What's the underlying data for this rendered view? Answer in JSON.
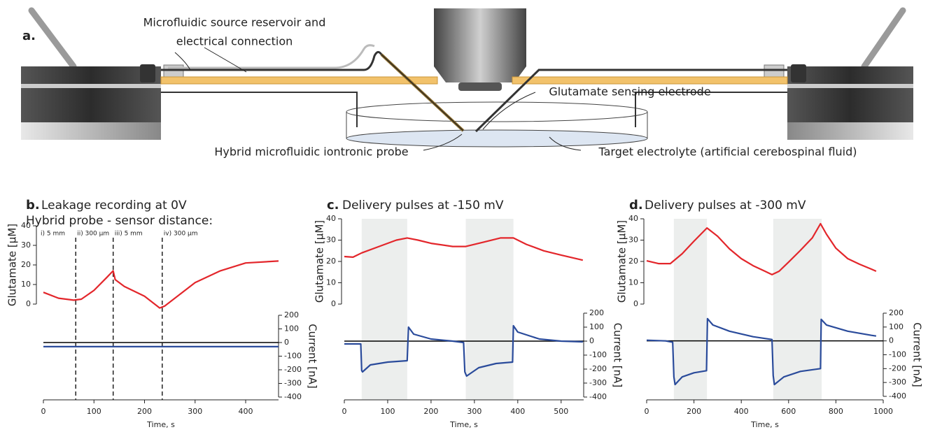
{
  "figure_a": {
    "panel_label": "a.",
    "labels": [
      [
        "Microfluidic source reservoir and",
        "electrical connection"
      ],
      [
        "Glutamate sensing electrode"
      ],
      [
        "Hybrid microfluidic iontronic probe"
      ],
      [
        "Target electrolyte (artificial cerebospinal fluid)"
      ]
    ]
  },
  "chart_data": [
    {
      "type": "line",
      "panel_label": "b.",
      "title": "Leakage recording at 0V",
      "subtitle": "Hybrid probe - sensor distance:",
      "xlabel": "Time, s",
      "ylabel": "Glutamate [µM]",
      "y2label": "Current [nA]",
      "xlim": [
        0,
        465
      ],
      "xticks": [
        0,
        100,
        200,
        300,
        400
      ],
      "ylim": [
        0,
        40
      ],
      "yticks": [
        0,
        10,
        20,
        30,
        40
      ],
      "y2lim": [
        -400,
        200
      ],
      "y2ticks": [
        -400,
        -300,
        -200,
        -100,
        0,
        100,
        200
      ],
      "vlines": [
        64,
        138,
        235
      ],
      "annotations": [
        {
          "text": "i) 5 mm",
          "x": 0
        },
        {
          "text": "ii) 300 µm",
          "x": 64
        },
        {
          "text": "iii) 5 mm",
          "x": 138
        },
        {
          "text": "iv) 300 µm",
          "x": 235
        }
      ],
      "series": [
        {
          "color": "#e3262b",
          "axis": "y",
          "x": [
            0,
            30,
            60,
            75,
            100,
            125,
            138,
            142,
            160,
            200,
            230,
            240,
            270,
            300,
            350,
            400,
            465
          ],
          "values": [
            6,
            3,
            2,
            2.5,
            7,
            13.5,
            17,
            12.5,
            9,
            4,
            -2,
            -1,
            5,
            11,
            17,
            21,
            22
          ]
        },
        {
          "color": "#2a4b9b",
          "axis": "y2",
          "x": [
            0,
            465
          ],
          "values": [
            -30,
            -30
          ]
        }
      ]
    },
    {
      "type": "line",
      "panel_label": "c.",
      "title": "Delivery pulses at -150 mV",
      "xlabel": "Time, s",
      "ylabel": "Glutamate [µM]",
      "y2label": "Current [nA]",
      "xlim": [
        0,
        552
      ],
      "xticks": [
        0,
        100,
        200,
        300,
        400,
        500
      ],
      "ylim": [
        0,
        40
      ],
      "yticks": [
        0,
        10,
        20,
        30,
        40
      ],
      "y2lim": [
        -400,
        200
      ],
      "y2ticks": [
        -400,
        -300,
        -200,
        -100,
        0,
        100,
        200
      ],
      "shaded": [
        [
          40,
          145
        ],
        [
          280,
          390
        ]
      ],
      "series": [
        {
          "color": "#e3262b",
          "axis": "y",
          "x": [
            0,
            20,
            40,
            80,
            120,
            145,
            170,
            200,
            250,
            280,
            320,
            360,
            390,
            420,
            460,
            500,
            550
          ],
          "values": [
            22.3,
            22,
            24,
            27,
            30,
            31,
            30,
            28.5,
            27,
            27,
            29,
            31,
            31,
            28,
            25,
            23,
            20.6
          ]
        },
        {
          "color": "#2a4b9b",
          "axis": "y2",
          "x": [
            0,
            38,
            40,
            42,
            60,
            100,
            145,
            148,
            160,
            200,
            250,
            275,
            278,
            282,
            310,
            350,
            388,
            390,
            400,
            450,
            500,
            550
          ],
          "values": [
            -20,
            -20,
            -210,
            -220,
            -170,
            -150,
            -140,
            100,
            50,
            15,
            0,
            -10,
            -220,
            -250,
            -190,
            -160,
            -150,
            110,
            65,
            15,
            0,
            -5
          ]
        }
      ]
    },
    {
      "type": "line",
      "panel_label": "d.",
      "title": "Delivery pulses at -300 mV",
      "xlabel": "Time, s",
      "ylabel": "Glutamate [µM]",
      "y2label": "Current [nA]",
      "xlim": [
        0,
        1000
      ],
      "xticks": [
        0,
        200,
        400,
        600,
        800,
        1000
      ],
      "ylim": [
        0,
        40
      ],
      "yticks": [
        0,
        10,
        20,
        30,
        40
      ],
      "y2lim": [
        -400,
        200
      ],
      "y2ticks": [
        -400,
        -300,
        -200,
        -100,
        0,
        100,
        200
      ],
      "shaded": [
        [
          115,
          255
        ],
        [
          535,
          740
        ]
      ],
      "series": [
        {
          "color": "#e3262b",
          "axis": "y",
          "x": [
            0,
            50,
            100,
            150,
            200,
            255,
            300,
            350,
            400,
            450,
            500,
            530,
            560,
            600,
            650,
            700,
            735,
            760,
            800,
            850,
            900,
            950,
            970
          ],
          "values": [
            20.3,
            19,
            19,
            23.6,
            29.5,
            35.7,
            31.8,
            25.9,
            21.3,
            18,
            15.4,
            13.8,
            15.4,
            19.7,
            25.2,
            31,
            37.7,
            32.8,
            26.2,
            21.3,
            18.7,
            16.4,
            15.4
          ]
        },
        {
          "color": "#2a4b9b",
          "axis": "y2",
          "x": [
            0,
            80,
            110,
            115,
            120,
            150,
            200,
            253,
            257,
            280,
            350,
            450,
            530,
            535,
            540,
            580,
            650,
            735,
            738,
            760,
            850,
            950,
            970
          ],
          "values": [
            5,
            0,
            -10,
            -260,
            -315,
            -260,
            -230,
            -215,
            160,
            115,
            70,
            30,
            10,
            -250,
            -315,
            -260,
            -220,
            -200,
            155,
            115,
            70,
            40,
            35
          ]
        }
      ]
    }
  ]
}
